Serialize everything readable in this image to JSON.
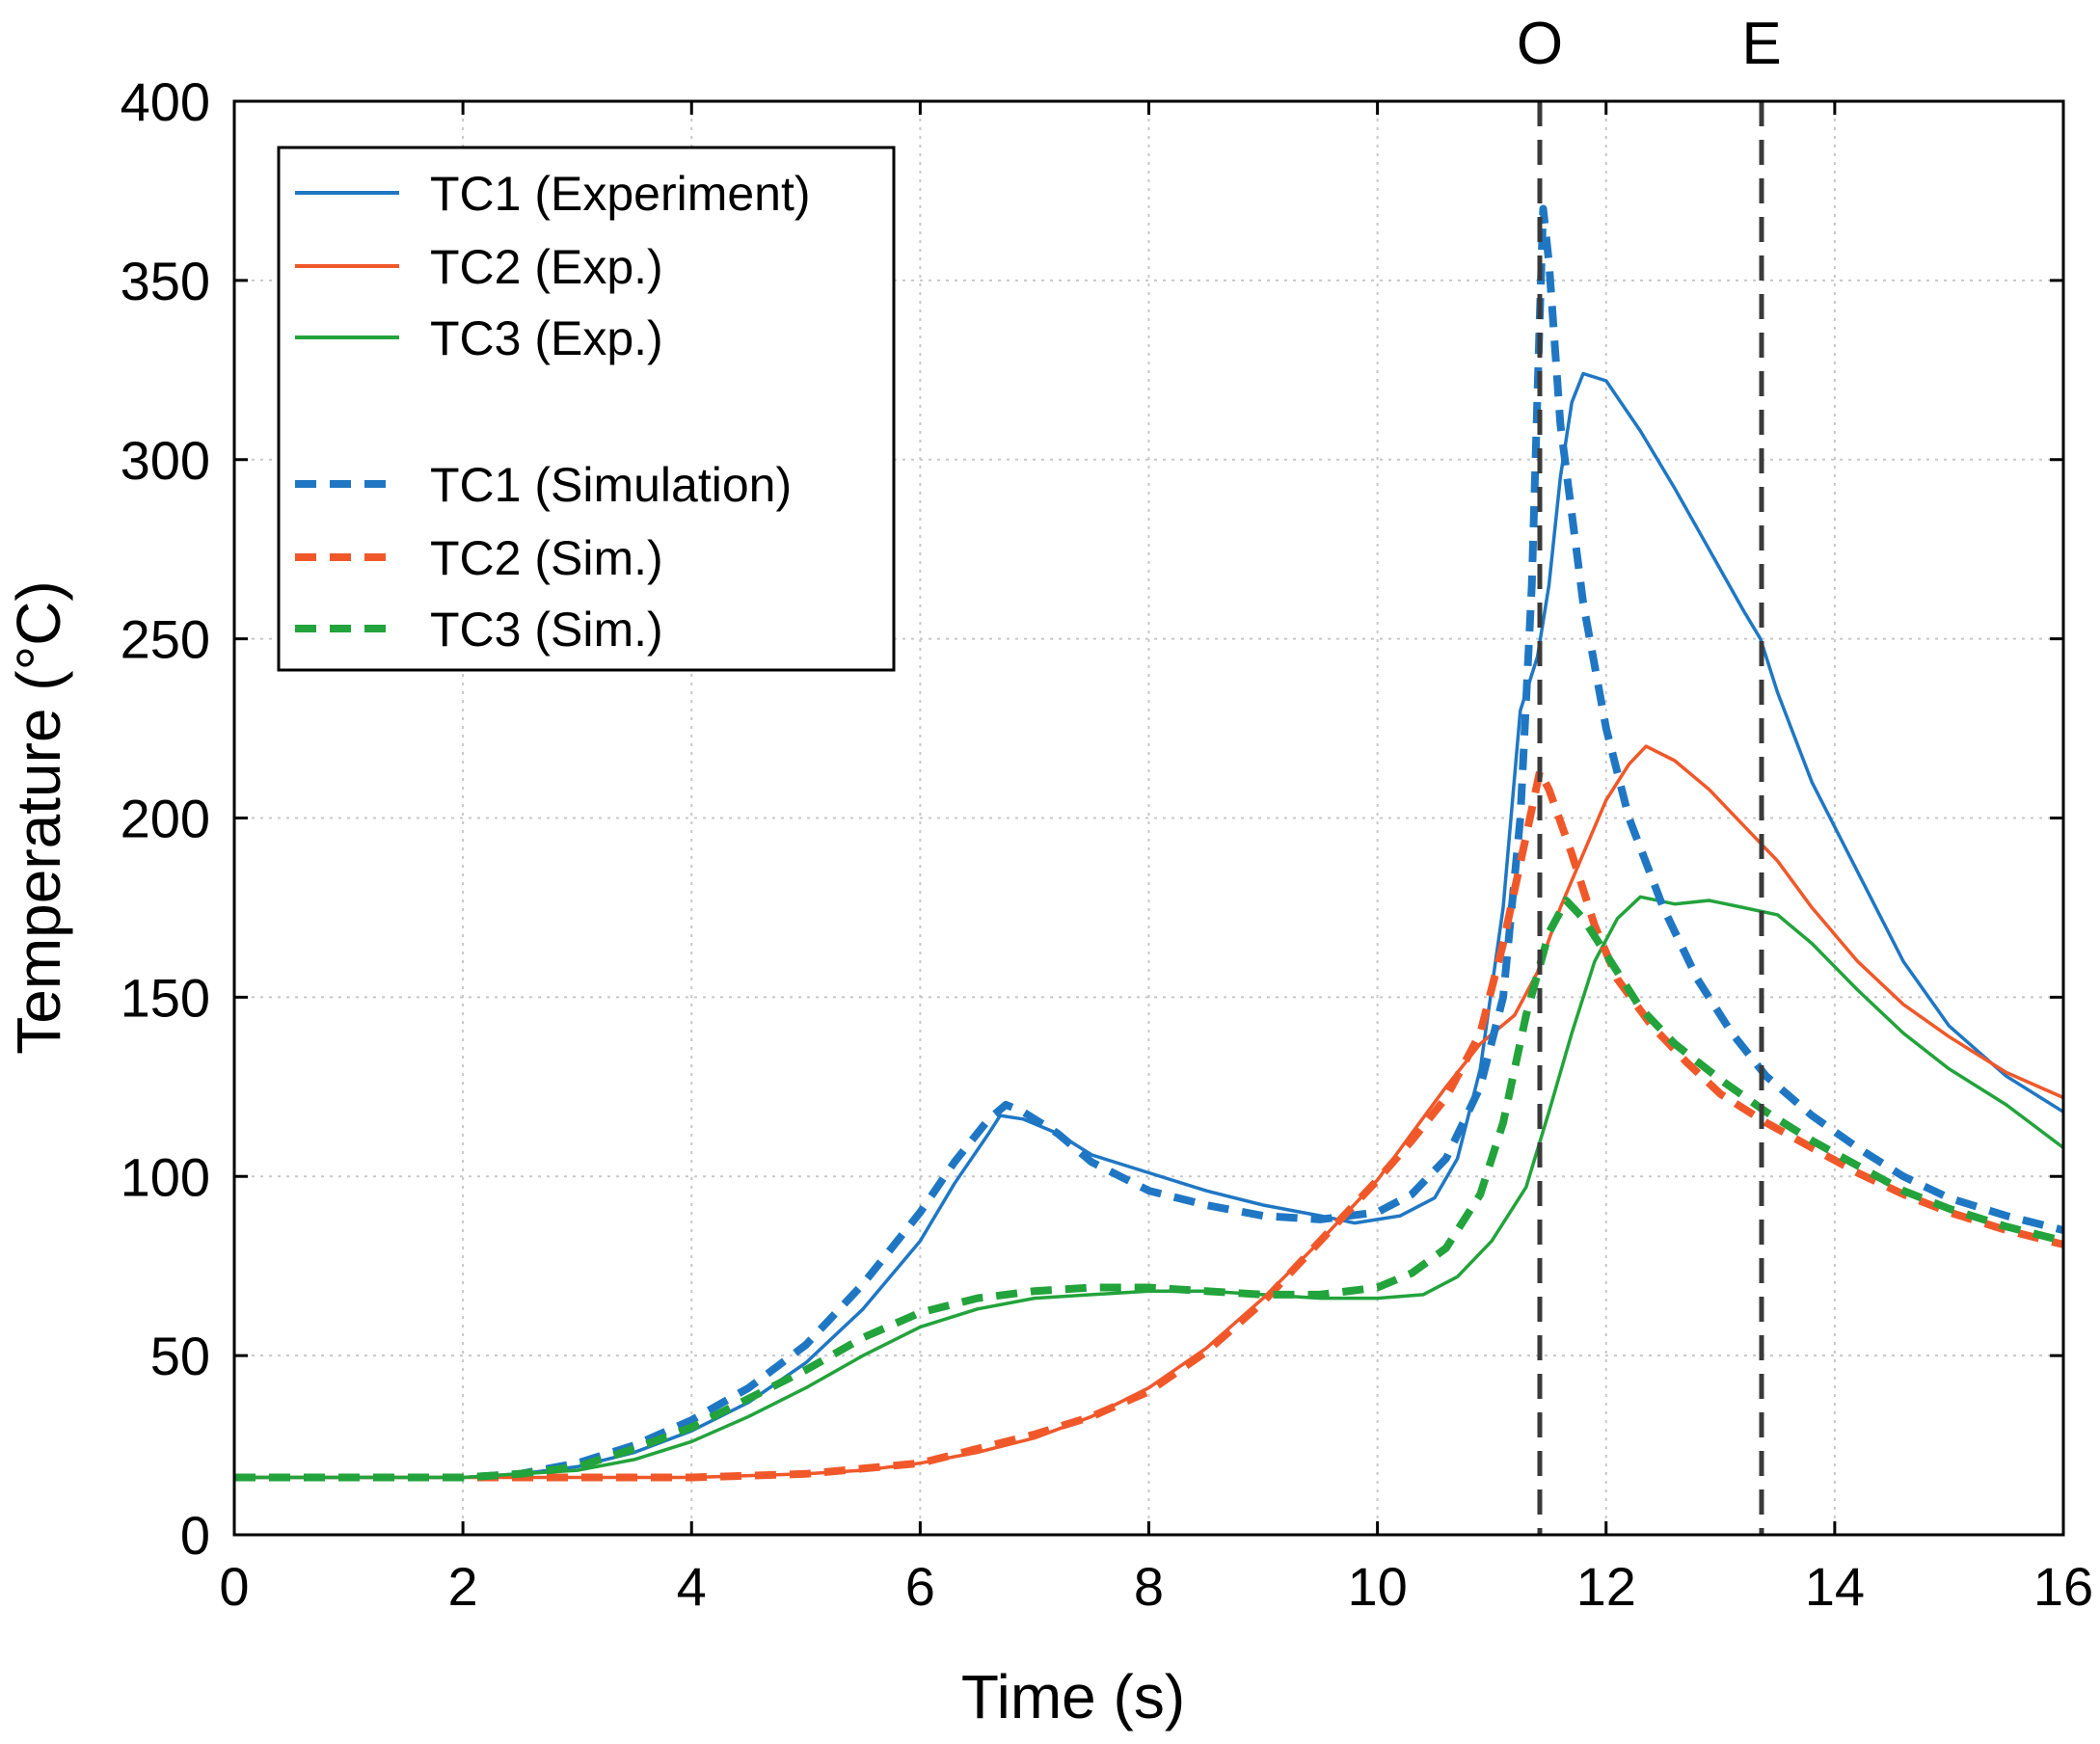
{
  "chart_data": {
    "type": "line",
    "xlabel": "Time (s)",
    "ylabel": "Temperature (°C)",
    "xlim": [
      0,
      16
    ],
    "ylim": [
      0,
      400
    ],
    "xticks": [
      0,
      2,
      4,
      6,
      8,
      10,
      12,
      14,
      16
    ],
    "yticks": [
      0,
      50,
      100,
      150,
      200,
      250,
      300,
      350,
      400
    ],
    "grid": true,
    "legend_position": "top-left",
    "vertical_markers": [
      {
        "label": "O",
        "x": 11.42
      },
      {
        "label": "E",
        "x": 13.36
      }
    ],
    "series": [
      {
        "name": "TC1 (Experiment)",
        "color": "#1f77c4",
        "style": "solid",
        "points": [
          [
            0,
            16
          ],
          [
            2,
            16
          ],
          [
            2.5,
            17
          ],
          [
            3,
            19
          ],
          [
            3.5,
            23
          ],
          [
            4,
            29
          ],
          [
            4.5,
            37
          ],
          [
            5,
            48
          ],
          [
            5.5,
            63
          ],
          [
            6,
            82
          ],
          [
            6.3,
            98
          ],
          [
            6.6,
            112
          ],
          [
            6.7,
            117
          ],
          [
            6.9,
            116
          ],
          [
            7.2,
            112
          ],
          [
            7.5,
            106
          ],
          [
            8,
            101
          ],
          [
            8.5,
            96
          ],
          [
            9,
            92
          ],
          [
            9.5,
            89
          ],
          [
            9.8,
            87
          ],
          [
            10.2,
            89
          ],
          [
            10.5,
            94
          ],
          [
            10.7,
            105
          ],
          [
            10.9,
            130
          ],
          [
            11.1,
            175
          ],
          [
            11.25,
            230
          ],
          [
            11.4,
            245
          ],
          [
            11.5,
            265
          ],
          [
            11.6,
            295
          ],
          [
            11.7,
            316
          ],
          [
            11.8,
            324
          ],
          [
            12,
            322
          ],
          [
            12.3,
            308
          ],
          [
            12.6,
            292
          ],
          [
            12.9,
            275
          ],
          [
            13.2,
            258
          ],
          [
            13.35,
            250
          ],
          [
            13.5,
            235
          ],
          [
            13.8,
            210
          ],
          [
            14.2,
            185
          ],
          [
            14.6,
            160
          ],
          [
            15,
            142
          ],
          [
            15.5,
            128
          ],
          [
            16,
            118
          ]
        ]
      },
      {
        "name": "TC2 (Exp.)",
        "color": "#f0582a",
        "style": "solid",
        "points": [
          [
            0,
            16
          ],
          [
            4,
            16
          ],
          [
            5,
            17
          ],
          [
            5.5,
            18
          ],
          [
            6,
            20
          ],
          [
            6.5,
            23
          ],
          [
            7,
            27
          ],
          [
            7.5,
            33
          ],
          [
            8,
            41
          ],
          [
            8.5,
            52
          ],
          [
            9,
            66
          ],
          [
            9.5,
            82
          ],
          [
            10,
            99
          ],
          [
            10.3,
            112
          ],
          [
            10.6,
            125
          ],
          [
            10.9,
            137
          ],
          [
            11.2,
            145
          ],
          [
            11.4,
            157
          ],
          [
            11.6,
            175
          ],
          [
            11.8,
            190
          ],
          [
            12,
            205
          ],
          [
            12.2,
            215
          ],
          [
            12.35,
            220
          ],
          [
            12.6,
            216
          ],
          [
            12.9,
            208
          ],
          [
            13.2,
            198
          ],
          [
            13.5,
            188
          ],
          [
            13.8,
            175
          ],
          [
            14.2,
            160
          ],
          [
            14.6,
            148
          ],
          [
            15,
            139
          ],
          [
            15.5,
            129
          ],
          [
            16,
            122
          ]
        ]
      },
      {
        "name": "TC3 (Exp.)",
        "color": "#22a33b",
        "style": "solid",
        "points": [
          [
            0,
            16
          ],
          [
            2,
            16
          ],
          [
            2.5,
            17
          ],
          [
            3,
            18
          ],
          [
            3.5,
            21
          ],
          [
            4,
            26
          ],
          [
            4.5,
            33
          ],
          [
            5,
            41
          ],
          [
            5.5,
            50
          ],
          [
            6,
            58
          ],
          [
            6.5,
            63
          ],
          [
            7,
            66
          ],
          [
            7.5,
            67
          ],
          [
            8,
            68
          ],
          [
            8.5,
            68
          ],
          [
            9,
            67
          ],
          [
            9.5,
            66
          ],
          [
            10,
            66
          ],
          [
            10.4,
            67
          ],
          [
            10.7,
            72
          ],
          [
            11,
            82
          ],
          [
            11.3,
            97
          ],
          [
            11.5,
            118
          ],
          [
            11.7,
            140
          ],
          [
            11.9,
            160
          ],
          [
            12.1,
            172
          ],
          [
            12.3,
            178
          ],
          [
            12.6,
            176
          ],
          [
            12.9,
            177
          ],
          [
            13.2,
            175
          ],
          [
            13.5,
            173
          ],
          [
            13.8,
            165
          ],
          [
            14.2,
            152
          ],
          [
            14.6,
            140
          ],
          [
            15,
            130
          ],
          [
            15.5,
            120
          ],
          [
            16,
            108
          ]
        ]
      },
      {
        "name": "TC1 (Simulation)",
        "color": "#1f77c4",
        "style": "dashed",
        "points": [
          [
            0,
            16
          ],
          [
            2,
            16
          ],
          [
            2.5,
            17
          ],
          [
            3,
            20
          ],
          [
            3.5,
            25
          ],
          [
            4,
            32
          ],
          [
            4.5,
            41
          ],
          [
            5,
            53
          ],
          [
            5.5,
            70
          ],
          [
            6,
            90
          ],
          [
            6.3,
            104
          ],
          [
            6.6,
            116
          ],
          [
            6.75,
            120
          ],
          [
            6.9,
            118
          ],
          [
            7.2,
            112
          ],
          [
            7.5,
            104
          ],
          [
            8,
            96
          ],
          [
            8.5,
            92
          ],
          [
            9,
            89
          ],
          [
            9.5,
            88
          ],
          [
            10,
            90
          ],
          [
            10.3,
            95
          ],
          [
            10.6,
            105
          ],
          [
            10.9,
            125
          ],
          [
            11.1,
            150
          ],
          [
            11.25,
            200
          ],
          [
            11.35,
            265
          ],
          [
            11.42,
            340
          ],
          [
            11.45,
            370
          ],
          [
            11.5,
            355
          ],
          [
            11.6,
            310
          ],
          [
            11.8,
            260
          ],
          [
            12,
            225
          ],
          [
            12.2,
            200
          ],
          [
            12.5,
            175
          ],
          [
            12.8,
            155
          ],
          [
            13.1,
            140
          ],
          [
            13.4,
            128
          ],
          [
            13.8,
            117
          ],
          [
            14.2,
            108
          ],
          [
            14.6,
            100
          ],
          [
            15,
            94
          ],
          [
            15.5,
            89
          ],
          [
            16,
            85
          ]
        ]
      },
      {
        "name": "TC2 (Sim.)",
        "color": "#f0582a",
        "style": "dashed",
        "points": [
          [
            0,
            16
          ],
          [
            4,
            16
          ],
          [
            5,
            17
          ],
          [
            6,
            20
          ],
          [
            6.5,
            24
          ],
          [
            7,
            28
          ],
          [
            7.5,
            33
          ],
          [
            8,
            40
          ],
          [
            8.5,
            51
          ],
          [
            9,
            65
          ],
          [
            9.5,
            82
          ],
          [
            10,
            99
          ],
          [
            10.3,
            110
          ],
          [
            10.6,
            122
          ],
          [
            10.9,
            140
          ],
          [
            11.1,
            165
          ],
          [
            11.3,
            195
          ],
          [
            11.42,
            213
          ],
          [
            11.5,
            208
          ],
          [
            11.7,
            190
          ],
          [
            11.9,
            170
          ],
          [
            12.1,
            155
          ],
          [
            12.4,
            142
          ],
          [
            12.7,
            132
          ],
          [
            13,
            123
          ],
          [
            13.4,
            115
          ],
          [
            13.8,
            108
          ],
          [
            14.2,
            101
          ],
          [
            14.6,
            95
          ],
          [
            15,
            90
          ],
          [
            15.5,
            85
          ],
          [
            16,
            81
          ]
        ]
      },
      {
        "name": "TC3 (Sim.)",
        "color": "#22a33b",
        "style": "dashed",
        "points": [
          [
            0,
            16
          ],
          [
            2,
            16
          ],
          [
            2.5,
            17
          ],
          [
            3,
            19
          ],
          [
            3.5,
            24
          ],
          [
            4,
            30
          ],
          [
            4.5,
            38
          ],
          [
            5,
            46
          ],
          [
            5.5,
            55
          ],
          [
            6,
            62
          ],
          [
            6.5,
            66
          ],
          [
            7,
            68
          ],
          [
            7.5,
            69
          ],
          [
            8,
            69
          ],
          [
            8.5,
            68
          ],
          [
            9,
            67
          ],
          [
            9.5,
            67
          ],
          [
            10,
            69
          ],
          [
            10.3,
            73
          ],
          [
            10.6,
            80
          ],
          [
            10.9,
            95
          ],
          [
            11.1,
            115
          ],
          [
            11.3,
            145
          ],
          [
            11.5,
            168
          ],
          [
            11.65,
            177
          ],
          [
            11.8,
            172
          ],
          [
            12,
            162
          ],
          [
            12.3,
            147
          ],
          [
            12.6,
            137
          ],
          [
            13,
            127
          ],
          [
            13.4,
            118
          ],
          [
            13.8,
            110
          ],
          [
            14.2,
            103
          ],
          [
            14.6,
            96
          ],
          [
            15,
            91
          ],
          [
            15.5,
            86
          ],
          [
            16,
            82
          ]
        ]
      }
    ]
  }
}
